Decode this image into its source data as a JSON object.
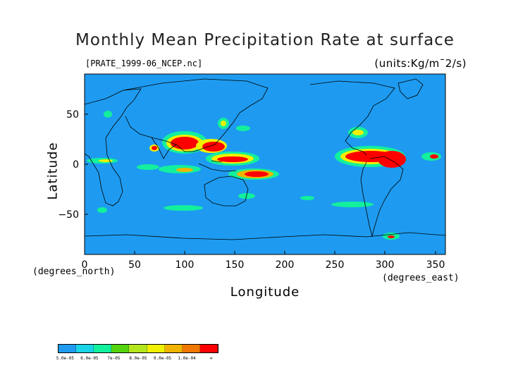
{
  "title": "Monthly Mean Precipitation Rate at surface",
  "subtitle_left": "[PRATE_1999-06_NCEP.nc]",
  "subtitle_right": "(units:Kg/m¯2/s)",
  "x_axis": {
    "label": "Longitude",
    "units": "(degrees_east)",
    "ticks": [
      "0",
      "50",
      "100",
      "150",
      "200",
      "250",
      "300",
      "350"
    ],
    "range": [
      0,
      360
    ]
  },
  "y_axis": {
    "label": "Latitude",
    "units": "(degrees_north)",
    "ticks": [
      "50",
      "0",
      "−50"
    ],
    "range": [
      -90,
      90
    ]
  },
  "colorbar": {
    "colors": [
      "#1e9bf0",
      "#19d3e6",
      "#13f09d",
      "#55d30f",
      "#b4e61e",
      "#f0f000",
      "#f0b400",
      "#f07800",
      "#ff0000"
    ],
    "labels": [
      "5.0e-05",
      "6.0e-05",
      "7e-05",
      "8.0e-05",
      "9.0e-05",
      "1.0e-04",
      "∞"
    ]
  },
  "map": {
    "ocean_color": "#1e9bf0",
    "heavy_rain_color": "#ff0000"
  }
}
